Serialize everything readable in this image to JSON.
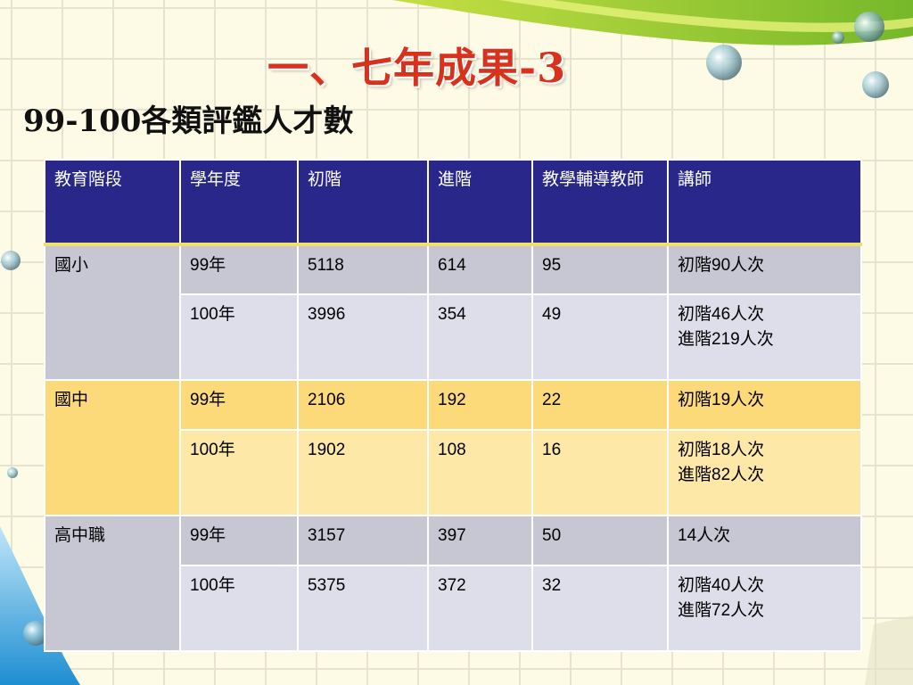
{
  "slide": {
    "title": "一、七年成果-3",
    "subtitle": "99-100各類評鑑人才數"
  },
  "colors": {
    "header_bg": "#29288a",
    "header_text": "#ffffff",
    "title": "#d8321c",
    "gray_shade": "#c7c7d3",
    "gray_light": "#dedeea",
    "yellow_shade": "#fcda7a",
    "yellow_light": "#fde8a8",
    "header_rule": "#f0e16a"
  },
  "table": {
    "headers": [
      "教育階段",
      "學年度",
      "初階",
      "進階",
      "教學輔導教師",
      "講師"
    ],
    "groups": [
      {
        "stage": "國小",
        "rows": [
          {
            "year": "99年",
            "basic": "5118",
            "advanced": "614",
            "mentor": "95",
            "lecturer": "初階90人次"
          },
          {
            "year": "100年",
            "basic": "3996",
            "advanced": "354",
            "mentor": "49",
            "lecturer": "初階46人次\n進階219人次"
          }
        ]
      },
      {
        "stage": "國中",
        "rows": [
          {
            "year": "99年",
            "basic": "2106",
            "advanced": "192",
            "mentor": "22",
            "lecturer": "初階19人次"
          },
          {
            "year": "100年",
            "basic": "1902",
            "advanced": "108",
            "mentor": "16",
            "lecturer": "初階18人次\n進階82人次"
          }
        ]
      },
      {
        "stage": "高中職",
        "rows": [
          {
            "year": "99年",
            "basic": "3157",
            "advanced": "397",
            "mentor": "50",
            "lecturer": "14人次"
          },
          {
            "year": "100年",
            "basic": "5375",
            "advanced": "372",
            "mentor": "32",
            "lecturer": "初階40人次\n進階72人次"
          }
        ]
      }
    ]
  }
}
